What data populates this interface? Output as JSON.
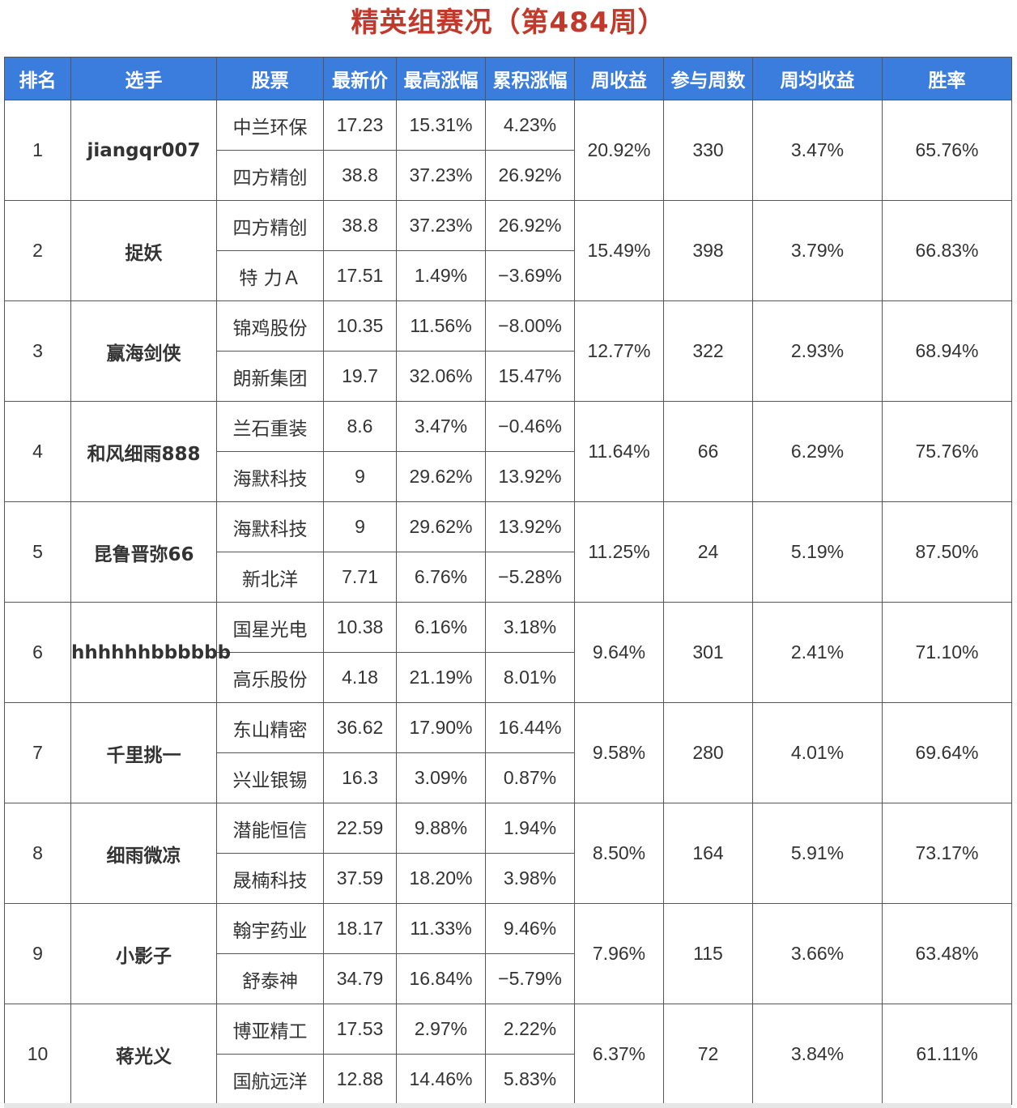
{
  "title": "精英组赛况（第484周）",
  "colors": {
    "header_bg": "#3b7ddd",
    "title": "#c0392b",
    "positive": "#e03a3a",
    "negative": "#2f8a3b",
    "link": "#3a6fbf"
  },
  "headers": [
    "排名",
    "选手",
    "股票",
    "最新价",
    "最高涨幅",
    "累积涨幅",
    "周收益",
    "参与周数",
    "周均收益",
    "胜率"
  ],
  "rows": [
    {
      "rank": "1",
      "player": "jiangqr007",
      "stocks": [
        {
          "name": "中兰环保",
          "price": "17.23",
          "max_gain": "15.31%",
          "cum_gain": "4.23%",
          "cum_sign": "pos"
        },
        {
          "name": "四方精创",
          "price": "38.8",
          "max_gain": "37.23%",
          "cum_gain": "26.92%",
          "cum_sign": "pos"
        }
      ],
      "weekly_return": "20.92%",
      "weeks": "330",
      "avg_return": "3.47%",
      "win_rate": "65.76%"
    },
    {
      "rank": "2",
      "player": "捉妖",
      "stocks": [
        {
          "name": "四方精创",
          "price": "38.8",
          "max_gain": "37.23%",
          "cum_gain": "26.92%",
          "cum_sign": "pos"
        },
        {
          "name": "特 力Ａ",
          "price": "17.51",
          "max_gain": "1.49%",
          "cum_gain": "−3.69%",
          "cum_sign": "neg"
        }
      ],
      "weekly_return": "15.49%",
      "weeks": "398",
      "avg_return": "3.79%",
      "win_rate": "66.83%"
    },
    {
      "rank": "3",
      "player": "赢海剑侠",
      "stocks": [
        {
          "name": "锦鸡股份",
          "price": "10.35",
          "max_gain": "11.56%",
          "cum_gain": "−8.00%",
          "cum_sign": "neg"
        },
        {
          "name": "朗新集团",
          "price": "19.7",
          "max_gain": "32.06%",
          "cum_gain": "15.47%",
          "cum_sign": "pos"
        }
      ],
      "weekly_return": "12.77%",
      "weeks": "322",
      "avg_return": "2.93%",
      "win_rate": "68.94%"
    },
    {
      "rank": "4",
      "player": "和风细雨888",
      "stocks": [
        {
          "name": "兰石重装",
          "price": "8.6",
          "max_gain": "3.47%",
          "cum_gain": "−0.46%",
          "cum_sign": "neg"
        },
        {
          "name": "海默科技",
          "price": "9",
          "max_gain": "29.62%",
          "cum_gain": "13.92%",
          "cum_sign": "pos"
        }
      ],
      "weekly_return": "11.64%",
      "weeks": "66",
      "avg_return": "6.29%",
      "win_rate": "75.76%"
    },
    {
      "rank": "5",
      "player": "昆鲁晋弥66",
      "stocks": [
        {
          "name": "海默科技",
          "price": "9",
          "max_gain": "29.62%",
          "cum_gain": "13.92%",
          "cum_sign": "pos"
        },
        {
          "name": "新北洋",
          "price": "7.71",
          "max_gain": "6.76%",
          "cum_gain": "−5.28%",
          "cum_sign": "neg"
        }
      ],
      "weekly_return": "11.25%",
      "weeks": "24",
      "avg_return": "5.19%",
      "win_rate": "87.50%"
    },
    {
      "rank": "6",
      "player": "hhhhhhbbbbbb",
      "stocks": [
        {
          "name": "国星光电",
          "price": "10.38",
          "max_gain": "6.16%",
          "cum_gain": "3.18%",
          "cum_sign": "pos"
        },
        {
          "name": "高乐股份",
          "price": "4.18",
          "max_gain": "21.19%",
          "cum_gain": "8.01%",
          "cum_sign": "pos"
        }
      ],
      "weekly_return": "9.64%",
      "weeks": "301",
      "avg_return": "2.41%",
      "win_rate": "71.10%"
    },
    {
      "rank": "7",
      "player": "千里挑一",
      "stocks": [
        {
          "name": "东山精密",
          "price": "36.62",
          "max_gain": "17.90%",
          "cum_gain": "16.44%",
          "cum_sign": "pos"
        },
        {
          "name": "兴业银锡",
          "price": "16.3",
          "max_gain": "3.09%",
          "cum_gain": "0.87%",
          "cum_sign": "pos"
        }
      ],
      "weekly_return": "9.58%",
      "weeks": "280",
      "avg_return": "4.01%",
      "win_rate": "69.64%"
    },
    {
      "rank": "8",
      "player": "细雨微凉",
      "stocks": [
        {
          "name": "潜能恒信",
          "price": "22.59",
          "max_gain": "9.88%",
          "cum_gain": "1.94%",
          "cum_sign": "pos"
        },
        {
          "name": "晟楠科技",
          "price": "37.59",
          "max_gain": "18.20%",
          "cum_gain": "3.98%",
          "cum_sign": "pos"
        }
      ],
      "weekly_return": "8.50%",
      "weeks": "164",
      "avg_return": "5.91%",
      "win_rate": "73.17%"
    },
    {
      "rank": "9",
      "player": "小影子",
      "stocks": [
        {
          "name": "翰宇药业",
          "price": "18.17",
          "max_gain": "11.33%",
          "cum_gain": "9.46%",
          "cum_sign": "pos"
        },
        {
          "name": "舒泰神",
          "price": "34.79",
          "max_gain": "16.84%",
          "cum_gain": "−5.79%",
          "cum_sign": "neg"
        }
      ],
      "weekly_return": "7.96%",
      "weeks": "115",
      "avg_return": "3.66%",
      "win_rate": "63.48%"
    },
    {
      "rank": "10",
      "player": "蒋光义",
      "stocks": [
        {
          "name": "博亚精工",
          "price": "17.53",
          "max_gain": "2.97%",
          "cum_gain": "2.22%",
          "cum_sign": "pos"
        },
        {
          "name": "国航远洋",
          "price": "12.88",
          "max_gain": "14.46%",
          "cum_gain": "5.83%",
          "cum_sign": "pos"
        }
      ],
      "weekly_return": "6.37%",
      "weeks": "72",
      "avg_return": "3.84%",
      "win_rate": "61.11%"
    }
  ]
}
